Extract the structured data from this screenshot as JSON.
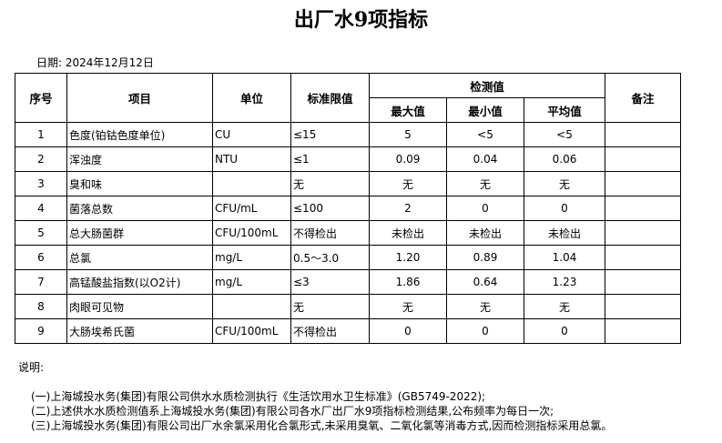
{
  "title": "出厂水9项指标",
  "date": "日期: 2024年12月12日",
  "headers": {
    "no": "序号",
    "item": "项目",
    "unit": "单位",
    "limit": "标准限值",
    "detect": "检测值",
    "max": "最大值",
    "min": "最小值",
    "avg": "平均值",
    "remark": "备注"
  },
  "rows": [
    {
      "no": "1",
      "item": "色度(铂钴色度单位)",
      "unit": "CU",
      "limit": "≤15",
      "max": "5",
      "min": "<5",
      "avg": "<5"
    },
    {
      "no": "2",
      "item": "浑浊度",
      "unit": "NTU",
      "limit": "≤1",
      "max": "0.09",
      "min": "0.04",
      "avg": "0.06"
    },
    {
      "no": "3",
      "item": "臭和味",
      "unit": "",
      "limit": "无",
      "max": "无",
      "min": "无",
      "avg": "无"
    },
    {
      "no": "4",
      "item": "菌落总数",
      "unit": "CFU/mL",
      "limit": "≤100",
      "max": "2",
      "min": "0",
      "avg": "0"
    },
    {
      "no": "5",
      "item": "总大肠菌群",
      "unit": "CFU/100mL",
      "limit": "不得检出",
      "max": "未检出",
      "min": "未检出",
      "avg": "未检出"
    },
    {
      "no": "6",
      "item": "总氯",
      "unit": "mg/L",
      "limit": "0.5～3.0",
      "max": "1.20",
      "min": "0.89",
      "avg": "1.04"
    },
    {
      "no": "7",
      "item": "高锰酸盐指数(以O2计)",
      "unit": "mg/L",
      "limit": "≤3",
      "max": "1.86",
      "min": "0.64",
      "avg": "1.23"
    },
    {
      "no": "8",
      "item": "肉眼可见物",
      "unit": "",
      "limit": "无",
      "max": "无",
      "min": "无",
      "avg": "无"
    },
    {
      "no": "9",
      "item": "大肠埃希氏菌",
      "unit": "CFU/100mL",
      "limit": "不得检出",
      "max": "0",
      "min": "0",
      "avg": "0"
    }
  ],
  "notes": {
    "label": "说明:",
    "lines": [
      "(一)上海城投水务(集团)有限公司供水水质检测执行《生活饮用水卫生标准》(GB5749-2022);",
      "(二)上述供水水质检测值系上海城投水务(集团)有限公司各水厂出厂水9项指标检测结果,公布频率为每日一次;",
      "(三)上海城投水务(集团)有限公司出厂水余氯采用化合氯形式,未采用臭氧、二氧化氯等消毒方式,因而检测指标采用总氯。"
    ]
  }
}
